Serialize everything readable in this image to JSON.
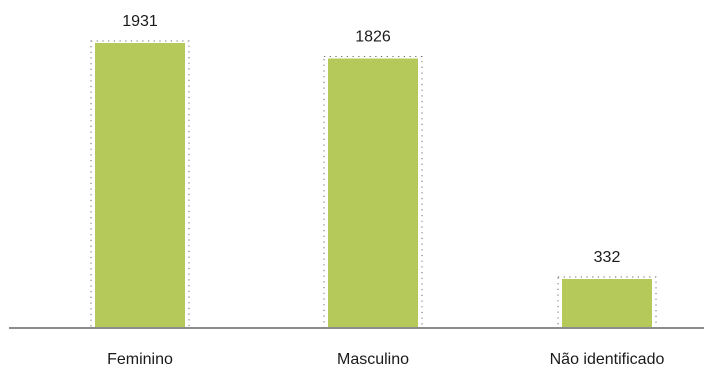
{
  "chart_data": {
    "type": "bar",
    "categories": [
      "Feminino",
      "Masculino",
      "Não identificado"
    ],
    "values": [
      1931,
      1826,
      332
    ],
    "title": "",
    "xlabel": "",
    "ylabel": "",
    "ylim": [
      0,
      1931
    ],
    "grid": false,
    "legend": "none",
    "data_labels": [
      "1931",
      "1826",
      "332"
    ]
  },
  "colors": {
    "bar": "#b5c95a",
    "axis": "#8c8c8c",
    "selection_dots": "#6a6a6a"
  }
}
